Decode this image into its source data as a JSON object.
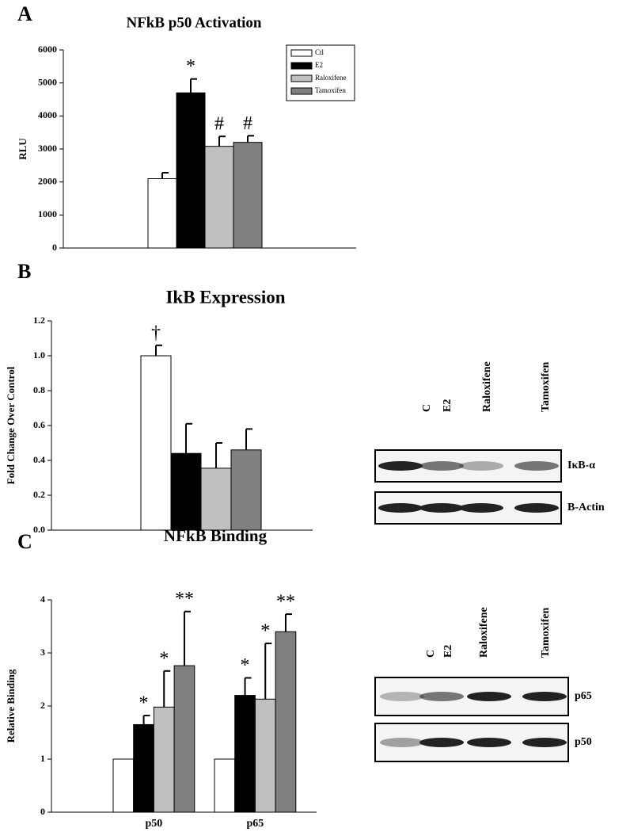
{
  "panel_labels": [
    "A",
    "B",
    "C"
  ],
  "chart_data": [
    {
      "type": "bar",
      "title": "NFkB p50 Activation",
      "y_label": "RLU",
      "categories": [
        null
      ],
      "series": [
        {
          "name": "Ctl",
          "color": "#ffffff",
          "values": [
            2100
          ],
          "errors": [
            180
          ],
          "annotations": [
            null
          ]
        },
        {
          "name": "E2",
          "color": "#000000",
          "values": [
            4700
          ],
          "errors": [
            420
          ],
          "annotations": [
            "*"
          ]
        },
        {
          "name": "Raloxifene",
          "color": "#c0c0c0",
          "values": [
            3080
          ],
          "errors": [
            300
          ],
          "annotations": [
            "#"
          ]
        },
        {
          "name": "Tamoxifen",
          "color": "#808080",
          "values": [
            3200
          ],
          "errors": [
            200
          ],
          "annotations": [
            "#"
          ]
        }
      ],
      "ylim": [
        0,
        6000
      ],
      "yticks": [
        0,
        1000,
        2000,
        3000,
        4000,
        5000,
        6000
      ],
      "legend": "upper right"
    },
    {
      "type": "bar",
      "title": "IkB Expression",
      "y_label": "Fold Change Over Control",
      "categories": [
        null
      ],
      "series": [
        {
          "color": "#ffffff",
          "values": [
            1.0
          ],
          "errors": [
            0.06
          ],
          "annotations": [
            "†"
          ]
        },
        {
          "color": "#000000",
          "values": [
            0.44
          ],
          "errors": [
            0.17
          ],
          "annotations": [
            null
          ]
        },
        {
          "color": "#c0c0c0",
          "values": [
            0.355
          ],
          "errors": [
            0.145
          ],
          "annotations": [
            null
          ]
        },
        {
          "color": "#808080",
          "values": [
            0.46
          ],
          "errors": [
            0.12
          ],
          "annotations": [
            null
          ]
        }
      ],
      "ylim": [
        0,
        1.2
      ],
      "yticks": [
        {
          "value": 0,
          "label": "0.0"
        },
        {
          "value": 0.2,
          "label": "0.2"
        },
        {
          "value": 0.4,
          "label": "0.4"
        },
        {
          "value": 0.6,
          "label": "0.6"
        },
        {
          "value": 0.8,
          "label": "0.8"
        },
        {
          "value": 1,
          "label": "1.0"
        },
        {
          "value": 1.2,
          "label": "1.2"
        }
      ]
    },
    {
      "type": "bar",
      "title": "NFkB Binding",
      "y_label": "Relative Binding",
      "categories": [
        "p50",
        "p65"
      ],
      "series": [
        {
          "color": "#ffffff",
          "values": [
            1.0,
            1.0
          ],
          "errors": [
            null,
            null
          ],
          "annotations": [
            null,
            null
          ]
        },
        {
          "color": "#000000",
          "values": [
            1.65,
            2.2
          ],
          "errors": [
            0.17,
            0.33
          ],
          "annotations": [
            "*",
            "*"
          ]
        },
        {
          "color": "#c0c0c0",
          "values": [
            1.98,
            2.13
          ],
          "errors": [
            0.68,
            1.05
          ],
          "annotations": [
            "*",
            "*"
          ]
        },
        {
          "color": "#808080",
          "values": [
            2.76,
            3.4
          ],
          "errors": [
            1.02,
            0.33
          ],
          "annotations": [
            "**",
            "**"
          ]
        }
      ],
      "ylim": [
        0,
        4
      ],
      "yticks": [
        0,
        1,
        2,
        3,
        4
      ]
    }
  ],
  "blots": [
    {
      "lanes": [
        "C",
        "E2",
        "Raloxifene",
        "Tamoxifen"
      ],
      "rows": [
        "IκB-α",
        "B-Actin"
      ]
    },
    {
      "lanes": [
        "C",
        "E2",
        "Raloxifene",
        "Tamoxifen"
      ],
      "rows": [
        "p65",
        "p50"
      ]
    }
  ]
}
